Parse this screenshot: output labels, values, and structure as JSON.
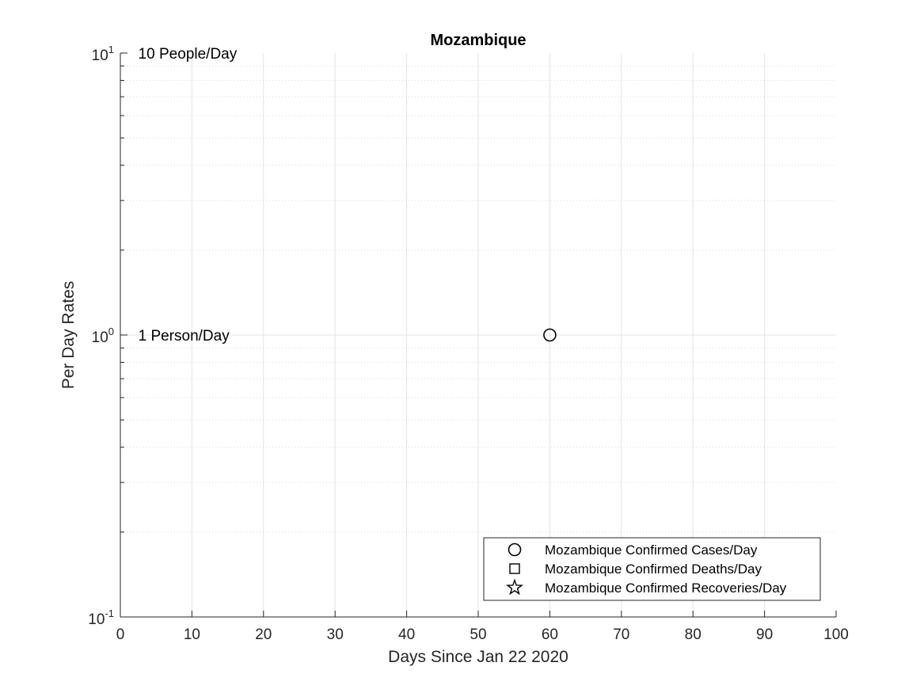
{
  "chart_data": {
    "type": "scatter",
    "title": "Mozambique",
    "xlabel": "Days Since Jan 22 2020",
    "ylabel": "Per Day Rates",
    "xlim": [
      0,
      100
    ],
    "ylim": [
      0.1,
      10
    ],
    "yscale": "log",
    "grid": true,
    "x_ticks": [
      "0",
      "10",
      "20",
      "30",
      "40",
      "50",
      "60",
      "70",
      "80",
      "90",
      "100"
    ],
    "y_ticks": [
      {
        "value": 0.1,
        "base": "10",
        "exp": "-1"
      },
      {
        "value": 1,
        "base": "10",
        "exp": "0"
      },
      {
        "value": 10,
        "base": "10",
        "exp": "1"
      }
    ],
    "annotations": [
      {
        "text": "10 People/Day",
        "x": 2.5,
        "y": 10
      },
      {
        "text": "1 Person/Day",
        "x": 2.5,
        "y": 1
      }
    ],
    "legend_position": "bottom-right",
    "series": [
      {
        "name": "Mozambique Confirmed Cases/Day",
        "marker": "circle",
        "color": "#000000",
        "points": [
          {
            "x": 60,
            "y": 1
          }
        ]
      },
      {
        "name": "Mozambique Confirmed Deaths/Day",
        "marker": "square",
        "color": "#000000",
        "points": []
      },
      {
        "name": "Mozambique Confirmed Recoveries/Day",
        "marker": "star",
        "color": "#000000",
        "points": []
      }
    ]
  }
}
